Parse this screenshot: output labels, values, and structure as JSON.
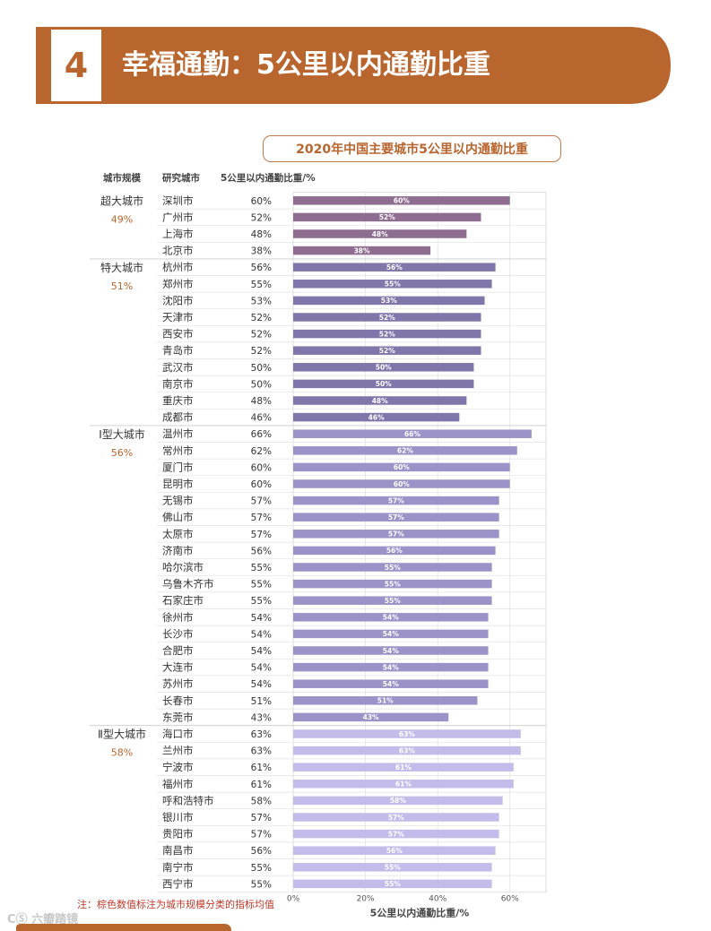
{
  "banner": {
    "number": "4",
    "title": "幸福通勤：5公里以内通勤比重",
    "color": "#b8652e"
  },
  "chart_title": "2020年中国主要城市5公里以内通勤比重",
  "note": "注：棕色数值标注为城市规模分类的指标均值",
  "watermark": "CⓈ 六瓣踏镜",
  "chart_data": {
    "type": "bar",
    "orientation": "horizontal",
    "title": "2020年中国主要城市5公里以内通勤比重",
    "column_headers": {
      "group": "城市规模",
      "city": "研究城市",
      "value": "5公里以内通勤比重/%"
    },
    "xlabel": "5公里以内通勤比重/%",
    "xlim": [
      0,
      70
    ],
    "xticks": [
      "0%",
      "20%",
      "40%",
      "60%"
    ],
    "xtick_values": [
      0,
      20,
      40,
      60
    ],
    "value_suffix": "%",
    "grid": true,
    "groups": [
      {
        "name": "超大城市",
        "mean": "49%",
        "color": "#8e6d90",
        "categories": [
          "深圳市",
          "广州市",
          "上海市",
          "北京市"
        ],
        "values": [
          60,
          52,
          48,
          38
        ]
      },
      {
        "name": "特大城市",
        "mean": "51%",
        "color": "#8076aa",
        "categories": [
          "杭州市",
          "郑州市",
          "沈阳市",
          "天津市",
          "西安市",
          "青岛市",
          "武汉市",
          "南京市",
          "重庆市",
          "成都市"
        ],
        "values": [
          56,
          55,
          53,
          52,
          52,
          52,
          50,
          50,
          48,
          46
        ]
      },
      {
        "name": "Ⅰ型大城市",
        "mean": "56%",
        "color": "#9b93c8",
        "categories": [
          "温州市",
          "常州市",
          "厦门市",
          "昆明市",
          "无锡市",
          "佛山市",
          "太原市",
          "济南市",
          "哈尔滨市",
          "乌鲁木齐市",
          "石家庄市",
          "徐州市",
          "长沙市",
          "合肥市",
          "大连市",
          "苏州市",
          "长春市",
          "东莞市"
        ],
        "values": [
          66,
          62,
          60,
          60,
          57,
          57,
          57,
          56,
          55,
          55,
          55,
          54,
          54,
          54,
          54,
          54,
          51,
          43
        ]
      },
      {
        "name": "Ⅱ型大城市",
        "mean": "58%",
        "color": "#c3bcea",
        "categories": [
          "海口市",
          "兰州市",
          "宁波市",
          "福州市",
          "呼和浩特市",
          "银川市",
          "贵阳市",
          "南昌市",
          "南宁市",
          "西宁市"
        ],
        "values": [
          63,
          63,
          61,
          61,
          58,
          57,
          57,
          56,
          55,
          55
        ]
      }
    ]
  }
}
